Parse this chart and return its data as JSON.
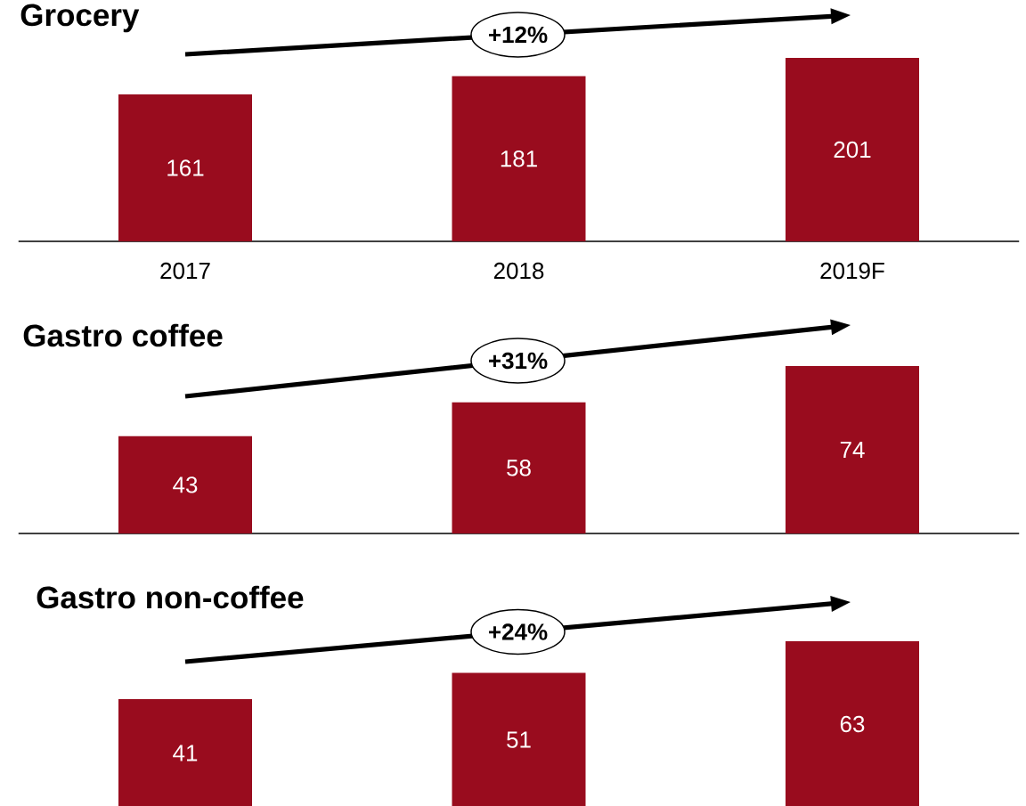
{
  "chart_data": [
    {
      "type": "bar",
      "title": "Grocery",
      "categories": [
        "2017",
        "2018",
        "2019F"
      ],
      "values": [
        161,
        181,
        201
      ],
      "color": "#990c1e",
      "data_labels": true,
      "tick_labels": "x",
      "annotations": [
        "+12%"
      ]
    },
    {
      "type": "bar",
      "title": "Gastro coffee",
      "categories": [
        null,
        null,
        null
      ],
      "values": [
        43,
        58,
        74
      ],
      "color": "#990c1e",
      "data_labels": true,
      "annotations": [
        "+31%"
      ]
    },
    {
      "type": "bar",
      "title": "Gastro non-coffee",
      "categories": [
        null,
        null,
        null
      ],
      "values": [
        41,
        51,
        63
      ],
      "color": "#990c1e",
      "data_labels": true,
      "annotations": [
        "+24%"
      ]
    }
  ]
}
